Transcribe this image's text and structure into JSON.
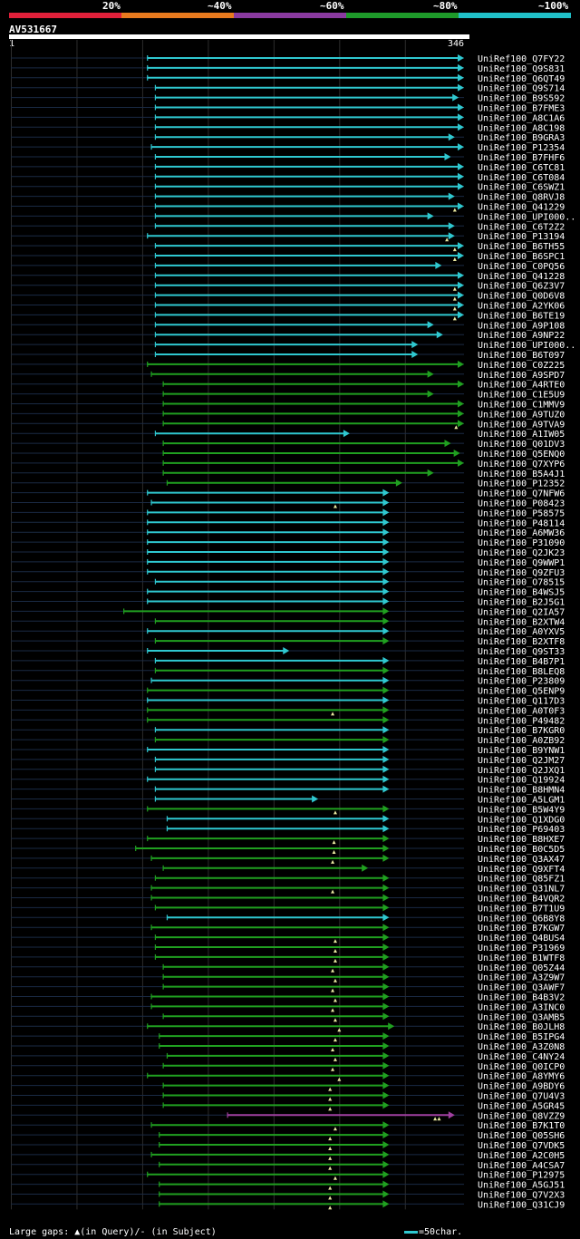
{
  "legend": {
    "labels": [
      "20%",
      "~40%",
      "~60%",
      "~80%",
      "~100%"
    ],
    "colors": [
      "#e0203a",
      "#e87a1e",
      "#8a3aa0",
      "#1e9a2a",
      "#20c0c8"
    ]
  },
  "query": {
    "id": "AV531667",
    "start": "1",
    "end": "346"
  },
  "footer": {
    "gaps_text": "Large gaps: ▲(in Query)/- (in Subject)",
    "scale_text": "=50char."
  },
  "chart_data": {
    "type": "alignment",
    "query_length": 346,
    "color_key": {
      "c": "#2fc8d0",
      "g": "#20a020",
      "p": "#a040a0"
    },
    "hits": [
      {
        "name": "UniRef100_Q7FY22",
        "start": 105,
        "end": 346,
        "color": "c",
        "gaps": []
      },
      {
        "name": "UniRef100_Q9S831",
        "start": 105,
        "end": 346,
        "color": "c",
        "gaps": []
      },
      {
        "name": "UniRef100_Q6QT49",
        "start": 105,
        "end": 346,
        "color": "c",
        "gaps": []
      },
      {
        "name": "UniRef100_Q9S714",
        "start": 111,
        "end": 346,
        "color": "c",
        "gaps": []
      },
      {
        "name": "UniRef100_B9S592",
        "start": 111,
        "end": 342,
        "color": "c",
        "gaps": []
      },
      {
        "name": "UniRef100_B7FME3",
        "start": 111,
        "end": 346,
        "color": "c",
        "gaps": []
      },
      {
        "name": "UniRef100_A8C1A6",
        "start": 111,
        "end": 346,
        "color": "c",
        "gaps": []
      },
      {
        "name": "UniRef100_A8C198",
        "start": 111,
        "end": 346,
        "color": "c",
        "gaps": []
      },
      {
        "name": "UniRef100_B9GRA3",
        "start": 111,
        "end": 339,
        "color": "c",
        "gaps": []
      },
      {
        "name": "UniRef100_P12354",
        "start": 108,
        "end": 346,
        "color": "c",
        "gaps": []
      },
      {
        "name": "UniRef100_B7FHF6",
        "start": 111,
        "end": 336,
        "color": "c",
        "gaps": []
      },
      {
        "name": "UniRef100_C6TC81",
        "start": 111,
        "end": 346,
        "color": "c",
        "gaps": []
      },
      {
        "name": "UniRef100_C6T084",
        "start": 111,
        "end": 346,
        "color": "c",
        "gaps": []
      },
      {
        "name": "UniRef100_C6SWZ1",
        "start": 111,
        "end": 346,
        "color": "c",
        "gaps": []
      },
      {
        "name": "UniRef100_Q8RVJ8",
        "start": 111,
        "end": 339,
        "color": "c",
        "gaps": []
      },
      {
        "name": "UniRef100_Q41229",
        "start": 111,
        "end": 346,
        "color": "c",
        "gaps": [
          339
        ]
      },
      {
        "name": "UniRef100_UPI000..",
        "start": 111,
        "end": 323,
        "color": "c",
        "gaps": []
      },
      {
        "name": "UniRef100_C6T2Z2",
        "start": 111,
        "end": 339,
        "color": "c",
        "gaps": []
      },
      {
        "name": "UniRef100_P13194",
        "start": 105,
        "end": 339,
        "color": "c",
        "gaps": [
          333
        ]
      },
      {
        "name": "UniRef100_B6TH55",
        "start": 111,
        "end": 346,
        "color": "c",
        "gaps": [
          339
        ]
      },
      {
        "name": "UniRef100_B6SPC1",
        "start": 111,
        "end": 346,
        "color": "c",
        "gaps": [
          339
        ]
      },
      {
        "name": "UniRef100_C0PQ56",
        "start": 111,
        "end": 329,
        "color": "c",
        "gaps": []
      },
      {
        "name": "UniRef100_Q41228",
        "start": 111,
        "end": 346,
        "color": "c",
        "gaps": []
      },
      {
        "name": "UniRef100_Q6Z3V7",
        "start": 111,
        "end": 346,
        "color": "c",
        "gaps": [
          339
        ]
      },
      {
        "name": "UniRef100_Q0D6V8",
        "start": 111,
        "end": 346,
        "color": "c",
        "gaps": [
          339
        ]
      },
      {
        "name": "UniRef100_A2YK06",
        "start": 111,
        "end": 346,
        "color": "c",
        "gaps": [
          339
        ]
      },
      {
        "name": "UniRef100_B6TE19",
        "start": 111,
        "end": 346,
        "color": "c",
        "gaps": [
          339
        ]
      },
      {
        "name": "UniRef100_A9P108",
        "start": 111,
        "end": 323,
        "color": "c",
        "gaps": []
      },
      {
        "name": "UniRef100_A9NP22",
        "start": 111,
        "end": 330,
        "color": "c",
        "gaps": []
      },
      {
        "name": "UniRef100_UPI000..",
        "start": 111,
        "end": 311,
        "color": "c",
        "gaps": []
      },
      {
        "name": "UniRef100_B6T097",
        "start": 111,
        "end": 311,
        "color": "c",
        "gaps": []
      },
      {
        "name": "UniRef100_C0Z225",
        "start": 105,
        "end": 346,
        "color": "g",
        "gaps": []
      },
      {
        "name": "UniRef100_A9SPD7",
        "start": 108,
        "end": 323,
        "color": "g",
        "gaps": []
      },
      {
        "name": "UniRef100_A4RTE0",
        "start": 117,
        "end": 346,
        "color": "g",
        "gaps": []
      },
      {
        "name": "UniRef100_C1E5U9",
        "start": 117,
        "end": 323,
        "color": "g",
        "gaps": []
      },
      {
        "name": "UniRef100_C1MMV9",
        "start": 117,
        "end": 346,
        "color": "g",
        "gaps": []
      },
      {
        "name": "UniRef100_A9TUZ0",
        "start": 117,
        "end": 346,
        "color": "g",
        "gaps": []
      },
      {
        "name": "UniRef100_A9TVA9",
        "start": 117,
        "end": 346,
        "color": "g",
        "gaps": [
          340
        ]
      },
      {
        "name": "UniRef100_A1IW05",
        "start": 111,
        "end": 259,
        "color": "c",
        "gaps": []
      },
      {
        "name": "UniRef100_Q01DV3",
        "start": 117,
        "end": 336,
        "color": "g",
        "gaps": []
      },
      {
        "name": "UniRef100_Q5ENQ0",
        "start": 117,
        "end": 343,
        "color": "g",
        "gaps": []
      },
      {
        "name": "UniRef100_Q7XYP6",
        "start": 117,
        "end": 346,
        "color": "g",
        "gaps": []
      },
      {
        "name": "UniRef100_B5A4J1",
        "start": 117,
        "end": 323,
        "color": "g",
        "gaps": []
      },
      {
        "name": "UniRef100_P12352",
        "start": 120,
        "end": 299,
        "color": "g",
        "gaps": []
      },
      {
        "name": "UniRef100_Q7NFW6",
        "start": 105,
        "end": 289,
        "color": "c",
        "gaps": []
      },
      {
        "name": "UniRef100_P08423",
        "start": 108,
        "end": 289,
        "color": "c",
        "gaps": [
          248
        ]
      },
      {
        "name": "UniRef100_P58575",
        "start": 105,
        "end": 289,
        "color": "c",
        "gaps": []
      },
      {
        "name": "UniRef100_P48114",
        "start": 105,
        "end": 289,
        "color": "c",
        "gaps": []
      },
      {
        "name": "UniRef100_A6MW36",
        "start": 105,
        "end": 289,
        "color": "c",
        "gaps": []
      },
      {
        "name": "UniRef100_P31090",
        "start": 105,
        "end": 289,
        "color": "c",
        "gaps": []
      },
      {
        "name": "UniRef100_Q2JK23",
        "start": 105,
        "end": 289,
        "color": "c",
        "gaps": []
      },
      {
        "name": "UniRef100_Q9WWP1",
        "start": 105,
        "end": 289,
        "color": "c",
        "gaps": []
      },
      {
        "name": "UniRef100_Q9ZFU3",
        "start": 105,
        "end": 289,
        "color": "c",
        "gaps": []
      },
      {
        "name": "UniRef100_O78515",
        "start": 111,
        "end": 289,
        "color": "c",
        "gaps": []
      },
      {
        "name": "UniRef100_B4WSJ5",
        "start": 105,
        "end": 289,
        "color": "c",
        "gaps": []
      },
      {
        "name": "UniRef100_B2J5G1",
        "start": 105,
        "end": 289,
        "color": "c",
        "gaps": []
      },
      {
        "name": "UniRef100_Q2IA57",
        "start": 87,
        "end": 289,
        "color": "g",
        "gaps": []
      },
      {
        "name": "UniRef100_B2XTW4",
        "start": 111,
        "end": 289,
        "color": "g",
        "gaps": []
      },
      {
        "name": "UniRef100_A0YXV5",
        "start": 105,
        "end": 289,
        "color": "c",
        "gaps": []
      },
      {
        "name": "UniRef100_B2XTF8",
        "start": 111,
        "end": 289,
        "color": "g",
        "gaps": []
      },
      {
        "name": "UniRef100_Q9ST33",
        "start": 105,
        "end": 213,
        "color": "c",
        "gaps": []
      },
      {
        "name": "UniRef100_B4B7P1",
        "start": 111,
        "end": 289,
        "color": "c",
        "gaps": []
      },
      {
        "name": "UniRef100_B8LEQ8",
        "start": 111,
        "end": 289,
        "color": "g",
        "gaps": []
      },
      {
        "name": "UniRef100_P23809",
        "start": 108,
        "end": 289,
        "color": "c",
        "gaps": []
      },
      {
        "name": "UniRef100_Q5ENP9",
        "start": 105,
        "end": 289,
        "color": "g",
        "gaps": []
      },
      {
        "name": "UniRef100_Q117D3",
        "start": 105,
        "end": 289,
        "color": "c",
        "gaps": []
      },
      {
        "name": "UniRef100_A0T0F3",
        "start": 105,
        "end": 289,
        "color": "g",
        "gaps": [
          246
        ]
      },
      {
        "name": "UniRef100_P49482",
        "start": 105,
        "end": 289,
        "color": "g",
        "gaps": []
      },
      {
        "name": "UniRef100_B7KGR0",
        "start": 111,
        "end": 289,
        "color": "c",
        "gaps": []
      },
      {
        "name": "UniRef100_A0ZB92",
        "start": 111,
        "end": 289,
        "color": "g",
        "gaps": []
      },
      {
        "name": "UniRef100_B9YNW1",
        "start": 105,
        "end": 289,
        "color": "c",
        "gaps": []
      },
      {
        "name": "UniRef100_Q2JM27",
        "start": 111,
        "end": 289,
        "color": "c",
        "gaps": []
      },
      {
        "name": "UniRef100_Q2JXQ1",
        "start": 111,
        "end": 289,
        "color": "c",
        "gaps": []
      },
      {
        "name": "UniRef100_Q19924",
        "start": 105,
        "end": 289,
        "color": "c",
        "gaps": []
      },
      {
        "name": "UniRef100_B8HMN4",
        "start": 111,
        "end": 289,
        "color": "c",
        "gaps": []
      },
      {
        "name": "UniRef100_A5LGM1",
        "start": 111,
        "end": 235,
        "color": "c",
        "gaps": []
      },
      {
        "name": "UniRef100_B5W4Y9",
        "start": 105,
        "end": 289,
        "color": "g",
        "gaps": [
          248
        ]
      },
      {
        "name": "UniRef100_Q1XDG0",
        "start": 120,
        "end": 289,
        "color": "c",
        "gaps": []
      },
      {
        "name": "UniRef100_P69403",
        "start": 120,
        "end": 289,
        "color": "c",
        "gaps": []
      },
      {
        "name": "UniRef100_B8HXE7",
        "start": 105,
        "end": 289,
        "color": "g",
        "gaps": [
          247
        ]
      },
      {
        "name": "UniRef100_B0C5D5",
        "start": 96,
        "end": 289,
        "color": "g",
        "gaps": [
          247
        ]
      },
      {
        "name": "UniRef100_Q3AX47",
        "start": 108,
        "end": 289,
        "color": "g",
        "gaps": [
          246
        ]
      },
      {
        "name": "UniRef100_Q9XFT4",
        "start": 117,
        "end": 273,
        "color": "g",
        "gaps": []
      },
      {
        "name": "UniRef100_Q85FZ1",
        "start": 111,
        "end": 289,
        "color": "g",
        "gaps": []
      },
      {
        "name": "UniRef100_Q31NL7",
        "start": 108,
        "end": 289,
        "color": "g",
        "gaps": [
          246
        ]
      },
      {
        "name": "UniRef100_B4VQR2",
        "start": 108,
        "end": 289,
        "color": "g",
        "gaps": []
      },
      {
        "name": "UniRef100_B7T1U9",
        "start": 111,
        "end": 289,
        "color": "g",
        "gaps": []
      },
      {
        "name": "UniRef100_Q6B8Y8",
        "start": 120,
        "end": 289,
        "color": "c",
        "gaps": []
      },
      {
        "name": "UniRef100_B7KGW7",
        "start": 108,
        "end": 289,
        "color": "g",
        "gaps": []
      },
      {
        "name": "UniRef100_Q4BUS4",
        "start": 111,
        "end": 289,
        "color": "g",
        "gaps": [
          248
        ]
      },
      {
        "name": "UniRef100_P31969",
        "start": 111,
        "end": 289,
        "color": "g",
        "gaps": [
          248
        ]
      },
      {
        "name": "UniRef100_B1WTF8",
        "start": 111,
        "end": 289,
        "color": "g",
        "gaps": [
          248
        ]
      },
      {
        "name": "UniRef100_Q05Z44",
        "start": 117,
        "end": 289,
        "color": "g",
        "gaps": [
          246
        ]
      },
      {
        "name": "UniRef100_A3Z9W7",
        "start": 117,
        "end": 289,
        "color": "g",
        "gaps": [
          248
        ]
      },
      {
        "name": "UniRef100_Q3AWF7",
        "start": 117,
        "end": 289,
        "color": "g",
        "gaps": [
          246
        ]
      },
      {
        "name": "UniRef100_B4B3V2",
        "start": 108,
        "end": 289,
        "color": "g",
        "gaps": [
          248
        ]
      },
      {
        "name": "UniRef100_A3INC0",
        "start": 108,
        "end": 289,
        "color": "g",
        "gaps": [
          246
        ]
      },
      {
        "name": "UniRef100_Q3AMB5",
        "start": 117,
        "end": 289,
        "color": "g",
        "gaps": [
          248
        ]
      },
      {
        "name": "UniRef100_B0JLH8",
        "start": 105,
        "end": 293,
        "color": "g",
        "gaps": [
          251
        ]
      },
      {
        "name": "UniRef100_B5IPG4",
        "start": 114,
        "end": 289,
        "color": "g",
        "gaps": [
          248
        ]
      },
      {
        "name": "UniRef100_A3Z0N8",
        "start": 114,
        "end": 289,
        "color": "g",
        "gaps": [
          246
        ]
      },
      {
        "name": "UniRef100_C4NY24",
        "start": 120,
        "end": 289,
        "color": "g",
        "gaps": [
          248
        ]
      },
      {
        "name": "UniRef100_Q0ICP0",
        "start": 117,
        "end": 289,
        "color": "g",
        "gaps": [
          246
        ]
      },
      {
        "name": "UniRef100_A8YMY6",
        "start": 105,
        "end": 289,
        "color": "g",
        "gaps": [
          251
        ]
      },
      {
        "name": "UniRef100_A9BDY6",
        "start": 117,
        "end": 289,
        "color": "g",
        "gaps": [
          244
        ]
      },
      {
        "name": "UniRef100_Q7U4V3",
        "start": 117,
        "end": 289,
        "color": "g",
        "gaps": [
          244
        ]
      },
      {
        "name": "UniRef100_A5GR45",
        "start": 117,
        "end": 289,
        "color": "g",
        "gaps": [
          244
        ]
      },
      {
        "name": "UniRef100_Q8VZZ9",
        "start": 166,
        "end": 339,
        "color": "p",
        "gaps": [
          324,
          327
        ]
      },
      {
        "name": "UniRef100_B7K1T0",
        "start": 108,
        "end": 289,
        "color": "g",
        "gaps": [
          248
        ]
      },
      {
        "name": "UniRef100_Q05SH6",
        "start": 114,
        "end": 289,
        "color": "g",
        "gaps": [
          244
        ]
      },
      {
        "name": "UniRef100_Q7VDK5",
        "start": 114,
        "end": 289,
        "color": "g",
        "gaps": [
          244
        ]
      },
      {
        "name": "UniRef100_A2C0H5",
        "start": 108,
        "end": 289,
        "color": "g",
        "gaps": [
          244
        ]
      },
      {
        "name": "UniRef100_A4CSA7",
        "start": 114,
        "end": 289,
        "color": "g",
        "gaps": [
          244
        ]
      },
      {
        "name": "UniRef100_P12975",
        "start": 105,
        "end": 289,
        "color": "g",
        "gaps": [
          248
        ]
      },
      {
        "name": "UniRef100_A5GJ51",
        "start": 114,
        "end": 289,
        "color": "g",
        "gaps": [
          244
        ]
      },
      {
        "name": "UniRef100_Q7V2X3",
        "start": 114,
        "end": 289,
        "color": "g",
        "gaps": [
          244
        ]
      },
      {
        "name": "UniRef100_Q31CJ9",
        "start": 114,
        "end": 289,
        "color": "g",
        "gaps": [
          244
        ]
      }
    ]
  }
}
